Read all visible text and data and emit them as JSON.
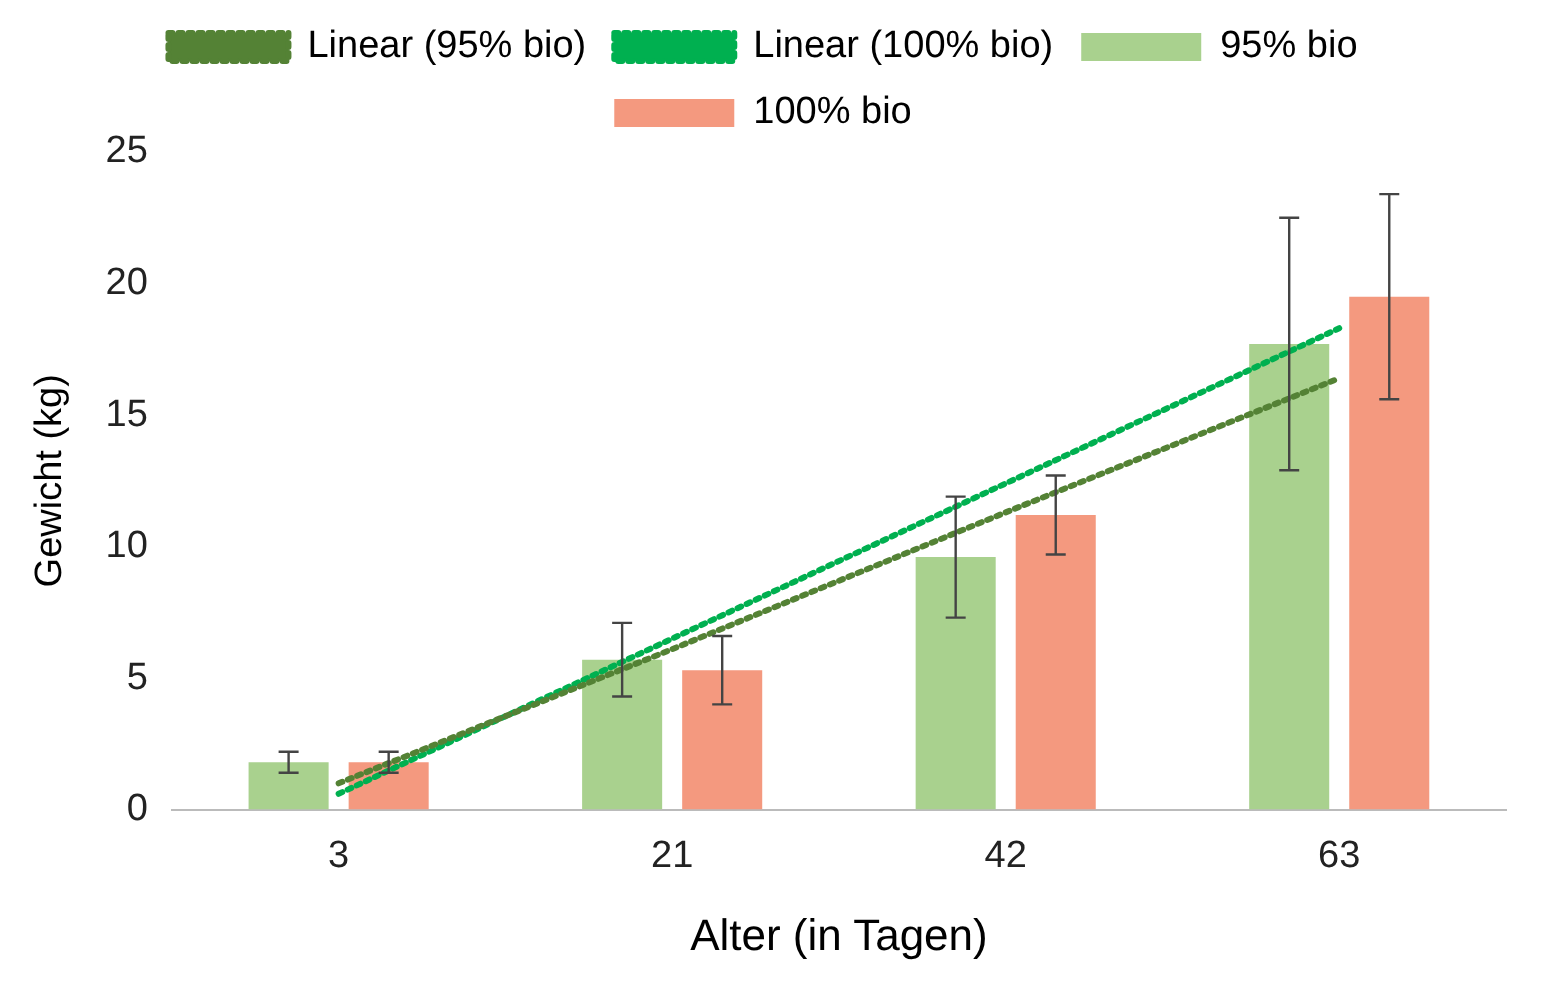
{
  "chart_data": {
    "type": "bar",
    "xlabel": "Alter (in Tagen)",
    "ylabel": "Gewicht (kg)",
    "categories": [
      "3",
      "21",
      "42",
      "63"
    ],
    "ylim": [
      0,
      25
    ],
    "yticks": [
      0,
      5,
      10,
      15,
      20,
      25
    ],
    "grid": false,
    "legend": "top",
    "series": [
      {
        "name": "95% bio",
        "color": "#a9d18e",
        "values": [
          1.8,
          5.7,
          9.6,
          17.7
        ],
        "errors": [
          0.4,
          1.4,
          2.3,
          4.8
        ]
      },
      {
        "name": "100% bio",
        "color": "#f4997f",
        "values": [
          1.8,
          5.3,
          11.2,
          19.5
        ],
        "errors": [
          0.4,
          1.3,
          1.5,
          3.9
        ]
      },
      {
        "name": "Linear (95% bio)",
        "type": "line",
        "line_style": "dotted",
        "marker": "none",
        "color": "#548235",
        "values": [
          1.0,
          6.1,
          11.3,
          16.4
        ]
      },
      {
        "name": "Linear (100% bio)",
        "type": "line",
        "line_style": "dotted",
        "marker": "none",
        "color": "#00b050",
        "values": [
          0.6,
          6.5,
          12.4,
          18.3
        ]
      }
    ]
  }
}
